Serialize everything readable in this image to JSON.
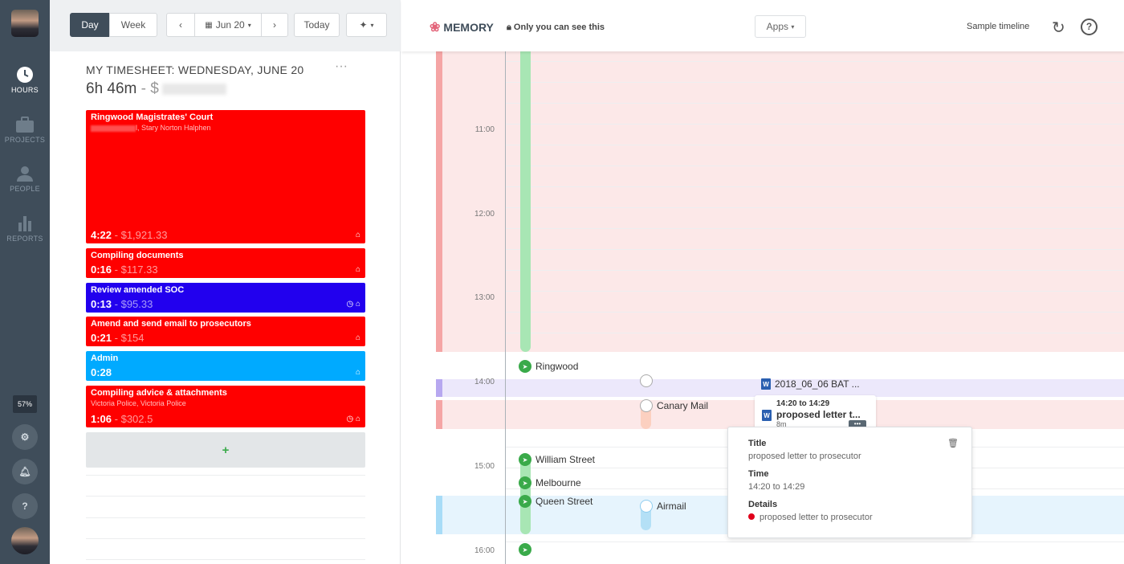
{
  "sidebar": {
    "items": [
      {
        "label": "HOURS",
        "icon": "clock-icon"
      },
      {
        "label": "PROJECTS",
        "icon": "briefcase-icon"
      },
      {
        "label": "PEOPLE",
        "icon": "person-icon"
      },
      {
        "label": "REPORTS",
        "icon": "bar-chart-icon"
      }
    ],
    "percent": "57%",
    "help": "?"
  },
  "toolbar": {
    "day": "Day",
    "week": "Week",
    "date": "Jun 20",
    "today": "Today"
  },
  "timesheet": {
    "title": "MY TIMESHEET: WEDNESDAY, JUNE 20",
    "menu": "···",
    "total": "6h 46m",
    "total_sep": " - $",
    "entries": [
      {
        "title": "Ringwood Magistrates' Court",
        "client": "l, Stary Norton Halphen",
        "duration": "4:22",
        "amount": " - $1,921.33",
        "color": "#ff0000"
      },
      {
        "title": "Compiling documents",
        "client": "",
        "duration": "0:16",
        "amount": " - $117.33",
        "color": "#ff0000"
      },
      {
        "title": "Review amended SOC",
        "client": "",
        "duration": "0:13",
        "amount": " - $95.33",
        "color": "#2200ee"
      },
      {
        "title": "Amend and send email to prosecutors",
        "client": "",
        "duration": "0:21",
        "amount": " - $154",
        "color": "#ff0000"
      },
      {
        "title": "Admin",
        "client": "",
        "duration": "0:28",
        "amount": "",
        "color": "#00aaff"
      },
      {
        "title": "Compiling advice & attachments",
        "client": "Victoria Police, Victoria Police",
        "duration": "1:06",
        "amount": " - $302.5",
        "color": "#ff0000"
      }
    ],
    "add": "+"
  },
  "memory": {
    "title": "MEMORY",
    "privacy": "Only you can see this",
    "apps": "Apps",
    "sample": "Sample timeline",
    "hours": [
      "11:00",
      "12:00",
      "13:00",
      "14:00",
      "15:00",
      "16:00"
    ],
    "locations": [
      "Ringwood",
      "William Street",
      "Melbourne",
      "Queen Street"
    ],
    "apps_used": [
      "Canary Mail",
      "Airmail"
    ],
    "doc1": "2018_06_06 BAT ...",
    "card": {
      "time": "14:20 to 14:29",
      "title": "proposed letter t...",
      "dur": "8m"
    },
    "tooltip": {
      "title_label": "Title",
      "title": "proposed letter to prosecutor",
      "time_label": "Time",
      "time": "14:20 to 14:29",
      "details_label": "Details",
      "details": "proposed letter to prosecutor"
    }
  }
}
